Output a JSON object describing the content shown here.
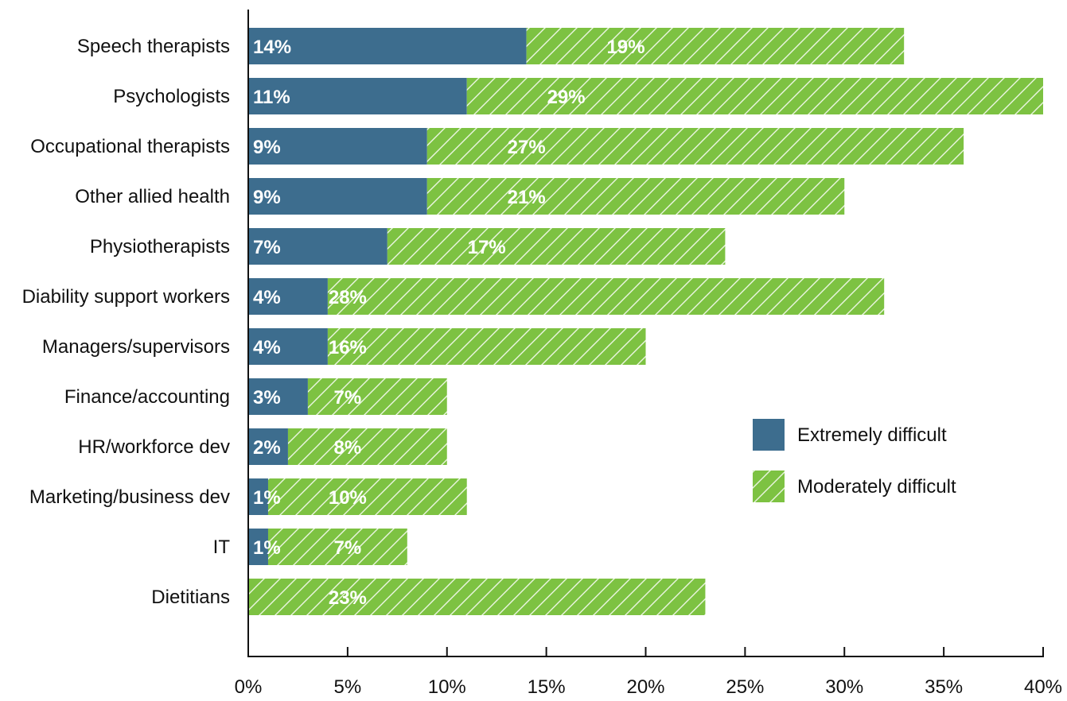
{
  "chart_data": {
    "type": "bar",
    "orientation": "horizontal",
    "stacked": true,
    "categories": [
      "Speech therapists",
      "Psychologists",
      "Occupational therapists",
      "Other allied health",
      "Physiotherapists",
      "Diability support workers",
      "Managers/supervisors",
      "Finance/accounting",
      "HR/workforce dev",
      "Marketing/business dev",
      "IT",
      "Dietitians"
    ],
    "series": [
      {
        "name": "Extremely difficult",
        "color": "#3d6d8e",
        "pattern": "solid",
        "values": [
          14,
          11,
          9,
          9,
          7,
          4,
          4,
          3,
          2,
          1,
          1,
          0
        ],
        "labels": [
          "14%",
          "11%",
          "9%",
          "9%",
          "7%",
          "4%",
          "4%",
          "3%",
          "2%",
          "1%",
          "1%",
          ""
        ]
      },
      {
        "name": "Moderately difficult",
        "color": "#7dc242",
        "pattern": "diagonal-hatch",
        "values": [
          19,
          29,
          27,
          21,
          17,
          28,
          16,
          7,
          8,
          10,
          7,
          23
        ],
        "labels": [
          "19%",
          "29%",
          "27%",
          "21%",
          "17%",
          "28%",
          "16%",
          "7%",
          "8%",
          "10%",
          "7%",
          "23%"
        ]
      }
    ],
    "xlim": [
      0,
      40
    ],
    "xticks": [
      0,
      5,
      10,
      15,
      20,
      25,
      30,
      35,
      40
    ],
    "xtick_labels": [
      "0%",
      "5%",
      "10%",
      "15%",
      "20%",
      "25%",
      "30%",
      "35%",
      "40%"
    ],
    "grid": false,
    "legend_position": "right-middle"
  }
}
